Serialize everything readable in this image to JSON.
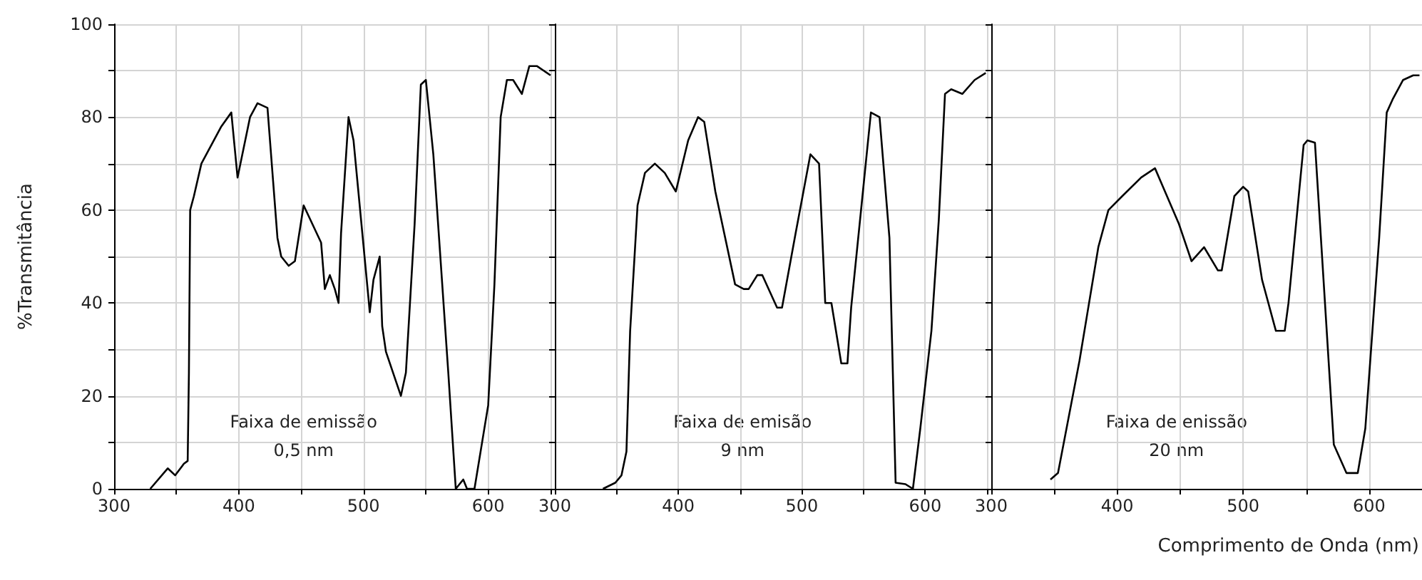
{
  "chart_data": [
    {
      "type": "line",
      "ylabel": "%Transmitância",
      "color": "#000000",
      "grid": true,
      "xlim": [
        300,
        650
      ],
      "xticks": [
        300,
        {
          "value": 350,
          "label": null
        },
        400,
        {
          "value": 450,
          "label": null
        },
        500,
        {
          "value": 550,
          "label": null
        },
        600,
        {
          "value": 650,
          "label": null
        }
      ],
      "ylim": [
        0,
        100
      ],
      "yticks": [
        0,
        {
          "value": 10,
          "label": null
        },
        20,
        {
          "value": 30,
          "label": null
        },
        40,
        {
          "value": 50,
          "label": null
        },
        60,
        {
          "value": 70,
          "label": null
        },
        80,
        {
          "value": 90,
          "label": null
        },
        100
      ],
      "annotations": [
        "Faixa de emissão\n0,5 nm"
      ],
      "x": [
        329,
        343,
        349,
        356,
        359,
        360,
        361,
        364,
        370,
        386,
        394,
        399,
        409,
        415,
        423,
        431,
        434,
        440,
        445,
        452,
        466,
        469,
        473,
        477,
        480,
        482,
        488,
        492,
        504,
        505,
        508,
        513,
        515,
        518,
        530,
        534,
        541,
        546,
        550,
        556,
        568,
        574,
        580,
        583,
        589,
        600,
        605,
        610,
        615,
        620,
        627,
        633,
        639,
        650
      ],
      "values": [
        0,
        4.4,
        2.9,
        5.4,
        6,
        25,
        60,
        63,
        70,
        78,
        81,
        67,
        80,
        83,
        82,
        54,
        50,
        48,
        49,
        61,
        53,
        43,
        46,
        43,
        40,
        55,
        80,
        75,
        41,
        38,
        45,
        50,
        35,
        29.5,
        20,
        25,
        57,
        87,
        88,
        72,
        25,
        0,
        2,
        0,
        0,
        18,
        44,
        80,
        88,
        88,
        85,
        91,
        91,
        89
      ]
    },
    {
      "type": "line",
      "color": "#000000",
      "grid": true,
      "tick_labels": "x",
      "xlim": [
        300,
        650
      ],
      "xticks": [
        300,
        {
          "value": 350,
          "label": null
        },
        400,
        {
          "value": 450,
          "label": null
        },
        500,
        {
          "value": 550,
          "label": null
        },
        600,
        {
          "value": 650,
          "label": null
        }
      ],
      "ylim": [
        0,
        100
      ],
      "yticks": [
        0,
        {
          "value": 10,
          "label": null
        },
        20,
        {
          "value": 30,
          "label": null
        },
        40,
        {
          "value": 50,
          "label": null
        },
        60,
        {
          "value": 70,
          "label": null
        },
        80,
        {
          "value": 90,
          "label": null
        },
        100
      ],
      "annotations": [
        "Faixa de emisão\n9 nm"
      ],
      "x": [
        339,
        349,
        354,
        358,
        361,
        367,
        373,
        381,
        389,
        398,
        408,
        416,
        421,
        430,
        446,
        453,
        457,
        464,
        468,
        480,
        484,
        495,
        507,
        514,
        519,
        524,
        532,
        537,
        540,
        548,
        556,
        563,
        571,
        576,
        584,
        590,
        596,
        605,
        611,
        616,
        621,
        630,
        640,
        649
      ],
      "values": [
        0,
        1.3,
        2.9,
        8,
        34,
        61,
        68,
        70,
        68,
        64,
        75,
        80,
        79,
        64,
        44,
        43,
        43,
        46,
        46,
        39,
        39,
        55,
        72,
        70,
        40,
        40,
        27,
        27,
        39,
        60,
        81,
        80,
        54,
        1.3,
        1,
        0,
        13,
        34,
        58,
        85,
        86,
        85,
        88,
        89.5
      ]
    },
    {
      "type": "line",
      "xlabel": "Comprimento de Onda (nm)",
      "color": "#000000",
      "grid": true,
      "tick_labels": "x",
      "xlim": [
        300,
        642
      ],
      "xticks": [
        300,
        {
          "value": 350,
          "label": null
        },
        400,
        {
          "value": 450,
          "label": null
        },
        500,
        {
          "value": 550,
          "label": null
        },
        600
      ],
      "ylim": [
        0,
        100
      ],
      "yticks": [
        0,
        {
          "value": 10,
          "label": null
        },
        20,
        {
          "value": 30,
          "label": null
        },
        40,
        {
          "value": 50,
          "label": null
        },
        60,
        {
          "value": 70,
          "label": null
        },
        80,
        {
          "value": 90,
          "label": null
        },
        100
      ],
      "annotations": [
        "Faixa de enissão\n20 nm"
      ],
      "x": [
        347,
        353,
        370,
        385,
        393,
        404,
        419,
        430,
        449,
        459,
        469,
        480,
        483,
        493,
        500,
        504,
        515,
        526,
        533,
        536,
        548,
        551,
        557,
        572,
        582,
        591,
        597,
        608,
        614,
        619,
        627,
        635,
        640
      ],
      "values": [
        2,
        3.4,
        27.5,
        52,
        60,
        63,
        67,
        69,
        57,
        49,
        52,
        47,
        47,
        63,
        65,
        64,
        45,
        34,
        34,
        40,
        74,
        75,
        74.5,
        9.5,
        3.4,
        3.4,
        13,
        54,
        81,
        84,
        88,
        89,
        89
      ]
    }
  ]
}
